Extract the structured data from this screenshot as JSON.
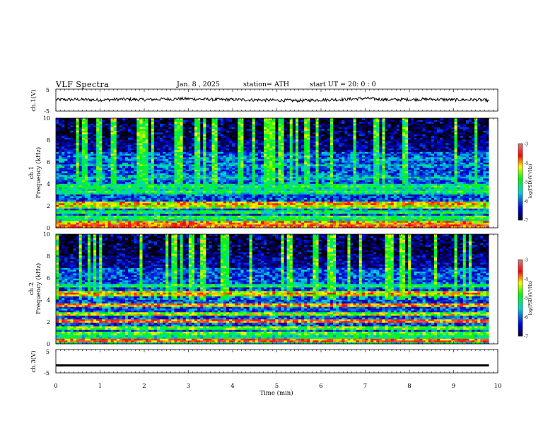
{
  "header": {
    "title": "VLF  Spectra",
    "date": "Jan. 8  , 2025",
    "station": "station= ATH",
    "start": "start  UT  =   20: 0  : 0"
  },
  "chart_data": [
    {
      "type": "line",
      "name": "ch1-waveform",
      "ylabel": "ch.1(V)",
      "ylim": [
        -5,
        5
      ],
      "yticks": [
        "5",
        "-5"
      ],
      "xlim": [
        0,
        10
      ],
      "x": [
        0,
        0.5,
        1,
        1.5,
        2,
        2.5,
        3,
        3.5,
        4,
        4.5,
        5,
        5.5,
        6,
        6.5,
        7,
        7.5,
        8,
        8.5,
        9,
        9.5,
        9.8
      ],
      "values": [
        0.2,
        0.3,
        0.1,
        0.4,
        0.2,
        0.5,
        0.6,
        0.3,
        0.2,
        0.1,
        -0.1,
        -0.2,
        0.1,
        0.3,
        0.8,
        0.2,
        0.3,
        0.4,
        0.1,
        0.2,
        -0.2
      ]
    },
    {
      "type": "heatmap",
      "name": "ch1-spectrogram",
      "ylabel": "ch.1\nFrequency (kHz)",
      "ylim": [
        0,
        10
      ],
      "yticks": [
        "0",
        "2",
        "4",
        "6",
        "8",
        "10"
      ],
      "xlim": [
        0,
        10
      ],
      "colorbar": {
        "label": "log(PSD)(V²/Hz)",
        "range": [
          -7,
          -3
        ],
        "ticks": [
          "-3",
          "-4",
          "-5",
          "-6",
          "-7"
        ]
      },
      "bands_khz": [
        {
          "f": 0.2,
          "psd": -3.5
        },
        {
          "f": 0.5,
          "psd": -3.8
        },
        {
          "f": 1.0,
          "psd": -4.8
        },
        {
          "f": 1.4,
          "psd": -5.0
        },
        {
          "f": 2.0,
          "psd": -4.3
        },
        {
          "f": 2.2,
          "psd": -3.9
        },
        {
          "f": 3.3,
          "psd": -5.0
        },
        {
          "f": 3.8,
          "psd": -5.0
        },
        {
          "f": 4.6,
          "psd": -5.5
        },
        {
          "f": 5.7,
          "psd": -5.6
        },
        {
          "f": 6.3,
          "psd": -5.7
        }
      ]
    },
    {
      "type": "heatmap",
      "name": "ch2-spectrogram",
      "ylabel": "ch.2\nFrequency (kHz)",
      "ylim": [
        0,
        10
      ],
      "yticks": [
        "0",
        "2",
        "4",
        "6",
        "8",
        "10"
      ],
      "xlim": [
        0,
        10
      ],
      "colorbar": {
        "label": "log(PSD)(V²/Hz)",
        "range": [
          -7,
          -3
        ],
        "ticks": [
          "-3",
          "-4",
          "-5",
          "-6",
          "-7"
        ]
      },
      "bands_khz": [
        {
          "f": 0.3,
          "psd": -3.6
        },
        {
          "f": 1.0,
          "psd": -4.6
        },
        {
          "f": 1.5,
          "psd": -4.5
        },
        {
          "f": 2.1,
          "psd": -3.6
        },
        {
          "f": 2.7,
          "psd": -4.3
        },
        {
          "f": 3.6,
          "psd": -3.8
        },
        {
          "f": 4.6,
          "psd": -4.0
        },
        {
          "f": 5.3,
          "psd": -5.0
        }
      ]
    },
    {
      "type": "line",
      "name": "ch3-waveform",
      "ylabel": "ch.3(V)",
      "ylim": [
        -5,
        5
      ],
      "yticks": [
        "5",
        "-5"
      ],
      "xlim": [
        0,
        10
      ],
      "x": [
        0,
        9.8
      ],
      "values": [
        -1.8,
        -1.8
      ]
    }
  ],
  "xaxis": {
    "label": "Time  (min)",
    "ticks": [
      "0",
      "1",
      "2",
      "3",
      "4",
      "5",
      "6",
      "7",
      "8",
      "9",
      "10"
    ]
  }
}
